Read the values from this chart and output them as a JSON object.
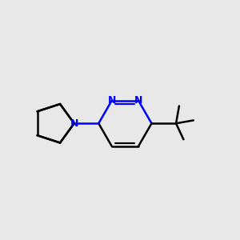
{
  "background_color": "#e8e8e8",
  "bond_color": "#000000",
  "nitrogen_color": "#0000ff",
  "bond_width": 1.8,
  "figsize": [
    3.0,
    3.0
  ],
  "dpi": 100,
  "xlim": [
    0.5,
    7.5
  ],
  "ylim": [
    1.0,
    5.0
  ]
}
